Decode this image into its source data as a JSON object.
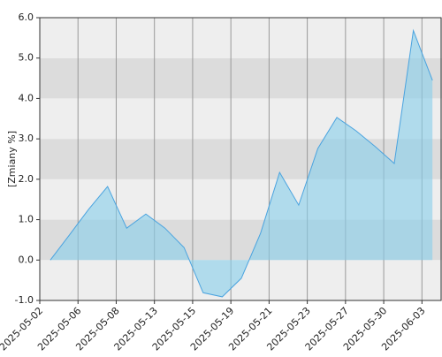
{
  "chart_data": {
    "type": "area",
    "y_label": "[Zmiany %]",
    "x": [
      0,
      1,
      2,
      3,
      4,
      5,
      6,
      7,
      8,
      9,
      10,
      11,
      12,
      13,
      14,
      15,
      16,
      17,
      18,
      19,
      20
    ],
    "series": [
      {
        "color": "#4aa3df",
        "values": [
          0.0,
          0.62,
          1.25,
          1.82,
          0.79,
          1.14,
          0.79,
          0.31,
          -0.81,
          -0.91,
          -0.45,
          0.66,
          2.17,
          1.36,
          2.76,
          3.53,
          3.2,
          2.81,
          2.39,
          5.68,
          4.45
        ]
      }
    ],
    "xlim": [
      -0.55,
      20.5
    ],
    "xticks": [
      {
        "value": -0.55,
        "label": "2025-05-02"
      },
      {
        "value": 1.45,
        "label": "2025-05-06"
      },
      {
        "value": 3.45,
        "label": "2025-05-08"
      },
      {
        "value": 5.45,
        "label": "2025-05-13"
      },
      {
        "value": 7.45,
        "label": "2025-05-15"
      },
      {
        "value": 9.45,
        "label": "2025-05-19"
      },
      {
        "value": 11.45,
        "label": "2025-05-21"
      },
      {
        "value": 13.45,
        "label": "2025-05-23"
      },
      {
        "value": 15.45,
        "label": "2025-05-27"
      },
      {
        "value": 17.45,
        "label": "2025-05-30"
      },
      {
        "value": 19.45,
        "label": "2025-06-03"
      }
    ],
    "ylim": [
      -1,
      6
    ],
    "yticks": [
      {
        "value": -1,
        "label": "-1.0"
      },
      {
        "value": 0,
        "label": "0.0"
      },
      {
        "value": 1,
        "label": "1.0"
      },
      {
        "value": 2,
        "label": "2.0"
      },
      {
        "value": 3,
        "label": "3.0"
      },
      {
        "value": 4,
        "label": "4.0"
      },
      {
        "value": 5,
        "label": "5.0"
      },
      {
        "value": 6,
        "label": "6.0"
      }
    ],
    "grid": true
  }
}
